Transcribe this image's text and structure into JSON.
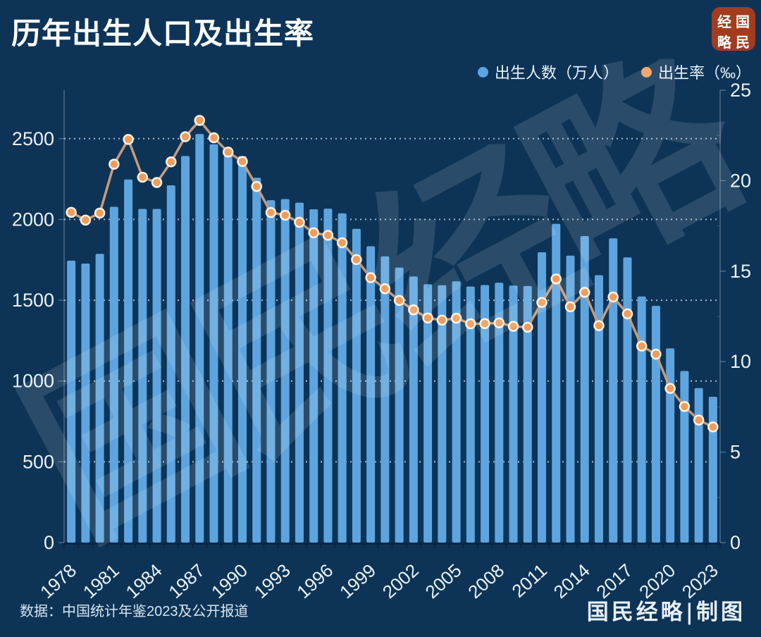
{
  "header": {
    "title": "历年出生人口及出生率",
    "logo": {
      "name": "国民经略",
      "grid": [
        "经",
        "国",
        "略",
        "民"
      ]
    }
  },
  "legend": {
    "births_label": "出生人数（万人）",
    "rate_label": "出生率（‰）"
  },
  "watermark": {
    "text": "国民经略",
    "chars": [
      "国",
      "民",
      "经",
      "略"
    ]
  },
  "footer": {
    "source": "数据：中国统计年鉴2023及公开报道",
    "credit": "国民经略|制图"
  },
  "colors": {
    "background": "#0D3456",
    "bar": "#5EA5E0",
    "line": "#C49B7D",
    "marker": "#F09C5C",
    "marker_ring": "#FDF3E7",
    "gridline": "rgba(255,255,255,0.65)",
    "axis_line": "rgba(154,175,196,0.45)",
    "baseline": "#0A2744",
    "axis_text": "#EAF2FA",
    "logo_bg": "#A23C1E"
  },
  "chart_data": {
    "type": "bar",
    "title": "历年出生人口及出生率",
    "xlabel": "",
    "ylabel_left": "出生人数（万人）",
    "ylabel_right": "出生率（‰）",
    "grid": "horizontal dotted lines at left-axis steps of 500",
    "legend_position": "top-right",
    "x_label_step": 3,
    "categories": [
      "1978",
      "1979",
      "1980",
      "1981",
      "1982",
      "1983",
      "1984",
      "1985",
      "1986",
      "1987",
      "1988",
      "1989",
      "1990",
      "1991",
      "1992",
      "1993",
      "1994",
      "1995",
      "1996",
      "1997",
      "1998",
      "1999",
      "2000",
      "2001",
      "2002",
      "2003",
      "2004",
      "2005",
      "2006",
      "2007",
      "2008",
      "2009",
      "2010",
      "2011",
      "2012",
      "2013",
      "2014",
      "2015",
      "2016",
      "2017",
      "2018",
      "2019",
      "2020",
      "2021",
      "2022",
      "2023"
    ],
    "left_axis": {
      "ticks": [
        0,
        500,
        1000,
        1500,
        2000,
        2500
      ],
      "max": 2800
    },
    "right_axis": {
      "ticks": [
        0,
        5,
        10,
        15,
        20,
        25
      ],
      "max": 25,
      "minor_step": 2.5
    },
    "series": [
      {
        "name": "出生人数（万人）",
        "type": "bar",
        "axis": "left",
        "color": "#5EA5E0",
        "values": [
          1745,
          1727,
          1787,
          2078,
          2247,
          2065,
          2065,
          2211,
          2393,
          2529,
          2465,
          2414,
          2391,
          2258,
          2119,
          2126,
          2104,
          2063,
          2067,
          2038,
          1942,
          1834,
          1771,
          1702,
          1647,
          1599,
          1593,
          1617,
          1585,
          1594,
          1608,
          1591,
          1588,
          1797,
          1973,
          1776,
          1897,
          1655,
          1883,
          1765,
          1523,
          1465,
          1202,
          1062,
          956,
          902
        ]
      },
      {
        "name": "出生率（‰）",
        "type": "line",
        "axis": "right",
        "color": "#C49B7D",
        "marker_color": "#F09C5C",
        "values": [
          18.25,
          17.82,
          18.21,
          20.91,
          22.28,
          20.19,
          19.9,
          21.04,
          22.43,
          23.33,
          22.37,
          21.58,
          21.06,
          19.68,
          18.24,
          18.09,
          17.7,
          17.12,
          16.98,
          16.57,
          15.64,
          14.64,
          14.03,
          13.38,
          12.86,
          12.41,
          12.29,
          12.4,
          12.09,
          12.1,
          12.14,
          11.95,
          11.9,
          13.27,
          14.57,
          13.03,
          13.83,
          11.99,
          13.57,
          12.64,
          10.86,
          10.41,
          8.52,
          7.52,
          6.77,
          6.39
        ]
      }
    ]
  }
}
